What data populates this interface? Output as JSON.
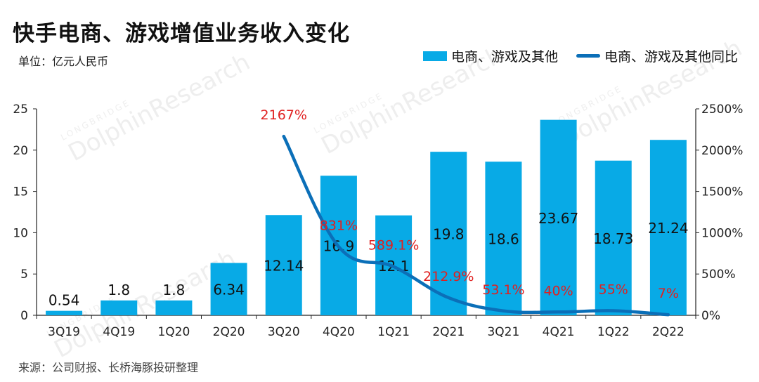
{
  "header": {
    "title": "快手电商、游戏增值业务收入变化",
    "unit": "单位：亿元人民币"
  },
  "legend": {
    "bar_label": "电商、游戏及其他",
    "line_label": "电商、游戏及其他同比"
  },
  "footer": {
    "source": "来源：公司财报、长桥海豚投研整理"
  },
  "watermark": {
    "brand": "LONGBRIDGE",
    "name": "DolphinResearch"
  },
  "colors": {
    "bar": "#08aae6",
    "line": "#0b6fb8",
    "line_label": "#e02020",
    "axis": "#222222"
  },
  "chart_data": {
    "type": "bar",
    "categories": [
      "3Q19",
      "4Q19",
      "1Q20",
      "2Q20",
      "3Q20",
      "4Q20",
      "1Q21",
      "2Q21",
      "3Q21",
      "4Q21",
      "1Q22",
      "2Q22"
    ],
    "series": [
      {
        "name": "电商、游戏及其他",
        "type": "bar",
        "axis": "left",
        "values": [
          0.54,
          1.8,
          1.8,
          6.34,
          12.14,
          16.9,
          12.1,
          19.8,
          18.6,
          23.67,
          18.73,
          21.24
        ],
        "labels": [
          "0.54",
          "1.8",
          "1.8",
          "6.34",
          "12.14",
          "16.9",
          "12.1",
          "19.8",
          "18.6",
          "23.67",
          "18.73",
          "21.24"
        ]
      },
      {
        "name": "电商、游戏及其他同比",
        "type": "line",
        "axis": "right",
        "values": [
          null,
          null,
          null,
          null,
          2167,
          831,
          589.1,
          212.9,
          53.1,
          40,
          55,
          7
        ],
        "labels": [
          "",
          "",
          "",
          "",
          "2167%",
          "831%",
          "589.1%",
          "212.9%",
          "53.1%",
          "40%",
          "55%",
          "7%"
        ]
      }
    ],
    "y_left": {
      "lim": [
        0,
        25
      ],
      "ticks": [
        "0",
        "5",
        "10",
        "15",
        "20",
        "25"
      ]
    },
    "y_right": {
      "lim": [
        0,
        2500
      ],
      "ticks": [
        "0%",
        "500%",
        "1000%",
        "1500%",
        "2000%",
        "2500%"
      ]
    },
    "grid": false,
    "legend_position": "top-right"
  }
}
